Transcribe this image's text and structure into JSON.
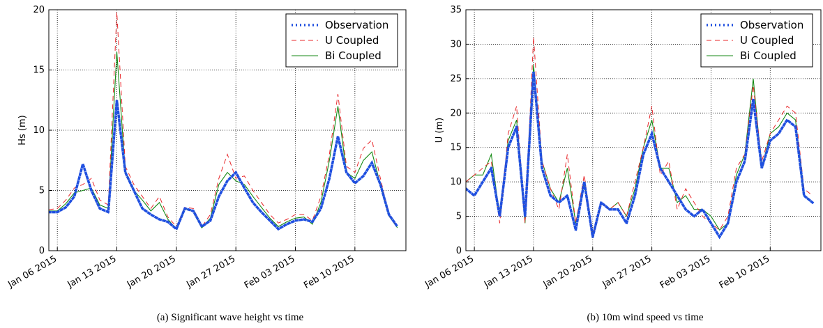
{
  "chart_data": [
    {
      "type": "line",
      "caption": "(a)  Significant wave height vs time",
      "ylabel": "Hs (m)",
      "x": [
        "2015-01-05",
        "2015-01-06",
        "2015-01-07",
        "2015-01-08",
        "2015-01-09",
        "2015-01-10",
        "2015-01-11",
        "2015-01-12",
        "2015-01-13",
        "2015-01-14",
        "2015-01-15",
        "2015-01-16",
        "2015-01-17",
        "2015-01-18",
        "2015-01-19",
        "2015-01-20",
        "2015-01-21",
        "2015-01-22",
        "2015-01-23",
        "2015-01-24",
        "2015-01-25",
        "2015-01-26",
        "2015-01-27",
        "2015-01-28",
        "2015-01-29",
        "2015-01-30",
        "2015-01-31",
        "2015-02-01",
        "2015-02-02",
        "2015-02-03",
        "2015-02-04",
        "2015-02-05",
        "2015-02-06",
        "2015-02-07",
        "2015-02-08",
        "2015-02-09",
        "2015-02-10",
        "2015-02-11",
        "2015-02-12",
        "2015-02-13",
        "2015-02-14",
        "2015-02-15"
      ],
      "xlim": [
        "2015-01-05",
        "2015-02-16"
      ],
      "xticks": [
        {
          "value": "2015-01-06",
          "label": "Jan 06 2015"
        },
        {
          "value": "2015-01-13",
          "label": "Jan 13 2015"
        },
        {
          "value": "2015-01-20",
          "label": "Jan 20 2015"
        },
        {
          "value": "2015-01-27",
          "label": "Jan 27 2015"
        },
        {
          "value": "2015-02-03",
          "label": "Feb 03 2015"
        },
        {
          "value": "2015-02-10",
          "label": "Feb 10 2015"
        }
      ],
      "ylim": [
        0,
        20
      ],
      "yticks": [
        0,
        5,
        10,
        15,
        20
      ],
      "grid": true,
      "legend": "upper right",
      "series": [
        {
          "name": "Observation",
          "color": "#1f4fe0",
          "style": "dotted",
          "values": [
            3.2,
            3.2,
            3.6,
            4.5,
            7.2,
            5.0,
            3.5,
            3.2,
            12.5,
            6.5,
            5.0,
            3.5,
            3.0,
            2.6,
            2.4,
            1.8,
            3.5,
            3.3,
            2.0,
            2.5,
            4.5,
            5.8,
            6.5,
            5.2,
            4.0,
            3.2,
            2.5,
            1.8,
            2.2,
            2.5,
            2.6,
            2.4,
            3.5,
            6.0,
            9.5,
            6.5,
            5.6,
            6.2,
            7.3,
            5.5,
            3.0,
            2.0
          ]
        },
        {
          "name": "U Coupled",
          "color": "#e8282b",
          "style": "dashed",
          "values": [
            3.4,
            3.5,
            4.2,
            5.2,
            5.5,
            6.0,
            4.2,
            3.8,
            19.8,
            7.0,
            5.5,
            4.5,
            3.5,
            4.5,
            2.8,
            2.0,
            3.6,
            3.5,
            2.0,
            3.0,
            6.0,
            8.0,
            6.0,
            6.2,
            5.0,
            4.0,
            3.0,
            2.3,
            2.6,
            3.0,
            3.0,
            2.5,
            4.5,
            8.0,
            13.0,
            7.0,
            6.5,
            8.5,
            9.2,
            6.0,
            3.0,
            2.0
          ]
        },
        {
          "name": "Bi Coupled",
          "color": "#148a14",
          "style": "solid",
          "values": [
            3.3,
            3.3,
            3.9,
            4.8,
            5.0,
            5.2,
            3.8,
            3.5,
            16.5,
            6.5,
            5.0,
            4.2,
            3.3,
            4.0,
            2.6,
            1.8,
            3.5,
            3.3,
            1.9,
            2.7,
            5.5,
            6.5,
            5.8,
            5.5,
            4.5,
            3.6,
            2.7,
            2.0,
            2.4,
            2.7,
            2.8,
            2.2,
            4.0,
            7.5,
            12.0,
            6.5,
            6.0,
            7.5,
            8.2,
            5.5,
            2.9,
            1.9
          ]
        }
      ]
    },
    {
      "type": "line",
      "caption": "(b)  10m wind speed vs time",
      "ylabel": "U (m)",
      "x": [
        "2015-01-05",
        "2015-01-06",
        "2015-01-07",
        "2015-01-08",
        "2015-01-09",
        "2015-01-10",
        "2015-01-11",
        "2015-01-12",
        "2015-01-13",
        "2015-01-14",
        "2015-01-15",
        "2015-01-16",
        "2015-01-17",
        "2015-01-18",
        "2015-01-19",
        "2015-01-20",
        "2015-01-21",
        "2015-01-22",
        "2015-01-23",
        "2015-01-24",
        "2015-01-25",
        "2015-01-26",
        "2015-01-27",
        "2015-01-28",
        "2015-01-29",
        "2015-01-30",
        "2015-01-31",
        "2015-02-01",
        "2015-02-02",
        "2015-02-03",
        "2015-02-04",
        "2015-02-05",
        "2015-02-06",
        "2015-02-07",
        "2015-02-08",
        "2015-02-09",
        "2015-02-10",
        "2015-02-11",
        "2015-02-12",
        "2015-02-13",
        "2015-02-14",
        "2015-02-15"
      ],
      "xlim": [
        "2015-01-05",
        "2015-02-16"
      ],
      "xticks": [
        {
          "value": "2015-01-06",
          "label": "Jan 06 2015"
        },
        {
          "value": "2015-01-13",
          "label": "Jan 13 2015"
        },
        {
          "value": "2015-01-20",
          "label": "Jan 20 2015"
        },
        {
          "value": "2015-01-27",
          "label": "Jan 27 2015"
        },
        {
          "value": "2015-02-03",
          "label": "Feb 03 2015"
        },
        {
          "value": "2015-02-10",
          "label": "Feb 10 2015"
        }
      ],
      "ylim": [
        0,
        35
      ],
      "yticks": [
        0,
        5,
        10,
        15,
        20,
        25,
        30,
        35
      ],
      "grid": true,
      "legend": "upper right",
      "series": [
        {
          "name": "Observation",
          "color": "#1f4fe0",
          "style": "dotted",
          "values": [
            9,
            8,
            10,
            12,
            5,
            15,
            18,
            5,
            26,
            12,
            8,
            7,
            8,
            3,
            10,
            2,
            7,
            6,
            6,
            4,
            8,
            14,
            17,
            12,
            10,
            8,
            6,
            5,
            6,
            4,
            2,
            4,
            10,
            13,
            22,
            12,
            16,
            17,
            19,
            18,
            8,
            7
          ]
        },
        {
          "name": "U Coupled",
          "color": "#e8282b",
          "style": "dashed",
          "values": [
            10,
            11,
            12,
            13,
            4,
            17,
            21,
            4,
            31,
            13,
            9,
            6,
            14,
            4,
            11,
            2,
            7,
            6,
            7,
            5,
            10,
            15,
            21,
            11,
            13,
            6,
            9,
            7,
            5,
            4,
            3,
            5,
            12,
            14,
            24,
            13,
            17,
            19,
            21,
            20,
            9,
            8
          ]
        },
        {
          "name": "Bi Coupled",
          "color": "#148a14",
          "style": "solid",
          "values": [
            10,
            11,
            11,
            14,
            5,
            16,
            19,
            4,
            27,
            13,
            9,
            7,
            12,
            4,
            10,
            2,
            7,
            6,
            7,
            5,
            9,
            15,
            19,
            12,
            12,
            7,
            8,
            6,
            6,
            5,
            3,
            4,
            11,
            14,
            25,
            12,
            17,
            18,
            20,
            19,
            8,
            7
          ]
        }
      ]
    }
  ]
}
